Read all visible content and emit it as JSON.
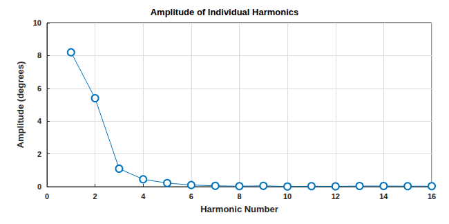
{
  "chart_data": {
    "type": "line",
    "title": "Amplitude of Individual Harmonics",
    "xlabel": "Harmonic Number",
    "ylabel": "Amplitude (degrees)",
    "x": [
      1,
      2,
      3,
      4,
      5,
      6,
      7,
      8,
      9,
      10,
      11,
      12,
      13,
      14,
      15,
      16
    ],
    "values": [
      8.2,
      5.4,
      1.1,
      0.45,
      0.22,
      0.1,
      0.05,
      0.03,
      0.05,
      0.01,
      0.03,
      0.02,
      0.04,
      0.04,
      0.03,
      0.03
    ],
    "color": "#0072bd",
    "marker": "circle",
    "xlim": [
      0,
      16
    ],
    "ylim": [
      0,
      10
    ],
    "xticks": [
      0,
      2,
      4,
      6,
      8,
      10,
      12,
      14,
      16
    ],
    "yticks": [
      0,
      2,
      4,
      6,
      8,
      10
    ],
    "grid": true
  }
}
